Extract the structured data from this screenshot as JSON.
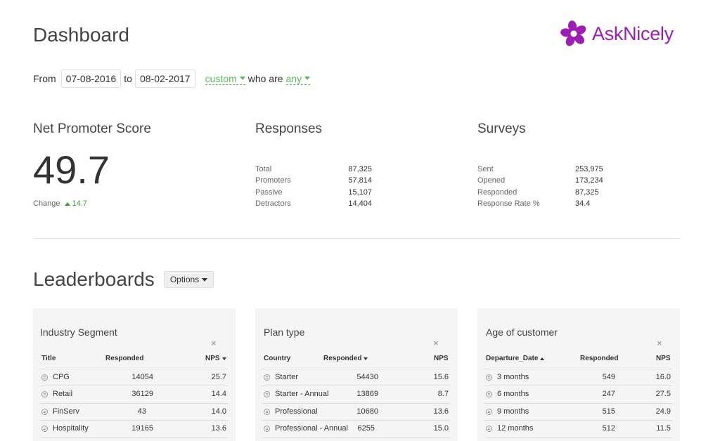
{
  "page": {
    "title": "Dashboard"
  },
  "logo": {
    "text": "AskNicely",
    "color": "#9b1fb0"
  },
  "filter": {
    "from_label": "From",
    "from_date": "07-08-2016",
    "to_label": "to",
    "to_date": "08-02-2017",
    "range_select": "custom",
    "who_label": "who are",
    "who_select": "any"
  },
  "nps": {
    "heading": "Net Promoter Score",
    "value": "49.7",
    "change_label": "Change",
    "change_value": "14.7"
  },
  "responses": {
    "heading": "Responses",
    "rows": [
      {
        "label": "Total",
        "value": "87,325"
      },
      {
        "label": "Promoters",
        "value": "57,814"
      },
      {
        "label": "Passive",
        "value": "15,107"
      },
      {
        "label": "Detractors",
        "value": "14,404"
      }
    ]
  },
  "surveys": {
    "heading": "Surveys",
    "rows": [
      {
        "label": "Sent",
        "value": "253,975"
      },
      {
        "label": "Opened",
        "value": "173,234"
      },
      {
        "label": "Responded",
        "value": "87,325"
      },
      {
        "label": "Response Rate %",
        "value": "34.4"
      }
    ]
  },
  "leaderboards": {
    "title": "Leaderboards",
    "options_label": "Options",
    "close_symbol": "×",
    "panels": [
      {
        "title": "Industry Segment",
        "columns": [
          "Title",
          "Responded",
          "NPS"
        ],
        "rows": [
          {
            "name": "CPG",
            "responded": "14054",
            "nps": "25.7"
          },
          {
            "name": "Retail",
            "responded": "36129",
            "nps": "14.4"
          },
          {
            "name": "FinServ",
            "responded": "43",
            "nps": "14.0"
          },
          {
            "name": "Hospitality",
            "responded": "19165",
            "nps": "13.6"
          }
        ]
      },
      {
        "title": "Plan type",
        "columns": [
          "Country",
          "Responded",
          "NPS"
        ],
        "rows": [
          {
            "name": "Starter",
            "responded": "54430",
            "nps": "15.6"
          },
          {
            "name": "Starter - Annual",
            "responded": "13869",
            "nps": "8.7"
          },
          {
            "name": "Professional",
            "responded": "10680",
            "nps": "13.6"
          },
          {
            "name": "Professional - Annual",
            "responded": "6255",
            "nps": "15.0"
          }
        ]
      },
      {
        "title": "Age of customer",
        "columns": [
          "Departure_Date",
          "Responded",
          "NPS"
        ],
        "rows": [
          {
            "name": "3 months",
            "responded": "549",
            "nps": "16.0"
          },
          {
            "name": "6 months",
            "responded": "247",
            "nps": "27.5"
          },
          {
            "name": "9 months",
            "responded": "515",
            "nps": "24.9"
          },
          {
            "name": "12 months",
            "responded": "512",
            "nps": "11.5"
          }
        ]
      }
    ]
  }
}
